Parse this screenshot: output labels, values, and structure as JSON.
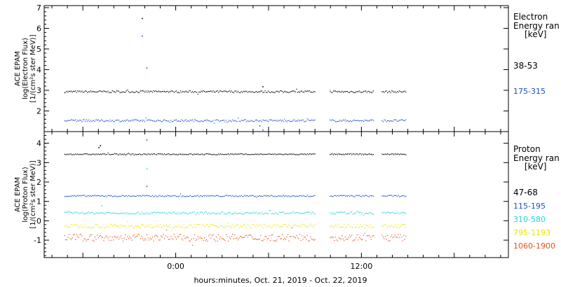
{
  "xaxis": {
    "label": "hours:minutes, Oct. 21, 2019 - Oct. 22, 2019",
    "range_hours": [
      -8.5,
      21.5
    ],
    "ticks": [
      {
        "value": 0,
        "label": "0:00"
      },
      {
        "value": 12,
        "label": "12:00"
      }
    ]
  },
  "chart_data": [
    {
      "type": "scatter",
      "ylabel": [
        "ACE EPAM",
        "log(Electron Flux)",
        "[1/(cm²s ster MeV)]"
      ],
      "legend_title": [
        "Electron",
        "Energy ran",
        "[keV]"
      ],
      "ylim": [
        1.0,
        7.1
      ],
      "yticks": [
        2,
        3,
        4,
        5,
        6,
        7
      ],
      "series": [
        {
          "name": "38-53",
          "color": "#000000",
          "level": 2.95,
          "noise": 0.05,
          "extra": [
            [
              -2.2,
              6.5
            ],
            [
              5.6,
              3.2
            ]
          ]
        },
        {
          "name": "175-315",
          "color": "#1a4fcf",
          "level": 1.55,
          "noise": 0.05,
          "extra": [
            [
              -2.2,
              5.65
            ],
            [
              -1.9,
              4.1
            ],
            [
              5.4,
              1.3
            ],
            [
              5.6,
              1.1
            ]
          ]
        }
      ],
      "data_gaps_hours": [
        [
          9.0,
          9.9
        ],
        [
          12.8,
          13.3
        ],
        [
          14.9,
          21.5
        ]
      ]
    },
    {
      "type": "scatter",
      "ylabel": [
        "ACE EPAM",
        "log(Proton Flux)",
        "[1/(cm²s ster MeV)]"
      ],
      "legend_title": [
        "Proton",
        "Energy ran",
        "[keV]"
      ],
      "ylim": [
        -1.9,
        4.6
      ],
      "yticks": [
        -1,
        0,
        1,
        2,
        3,
        4
      ],
      "series": [
        {
          "name": "47-68",
          "color": "#000000",
          "level": 3.45,
          "noise": 0.03,
          "extra": [
            [
              -5.0,
              3.8
            ],
            [
              -4.9,
              3.9
            ]
          ]
        },
        {
          "name": "115-195",
          "color": "#1a4fcf",
          "level": 1.3,
          "noise": 0.04,
          "extra": [
            [
              -1.9,
              4.2
            ],
            [
              -1.9,
              1.8
            ]
          ]
        },
        {
          "name": "310-580",
          "color": "#22d3d3",
          "level": 0.42,
          "noise": 0.06,
          "extra": [
            [
              -1.9,
              2.7
            ],
            [
              -4.8,
              0.8
            ]
          ]
        },
        {
          "name": "795-1193",
          "color": "#e6e600",
          "level": -0.25,
          "noise": 0.1,
          "extra": []
        },
        {
          "name": "1060-1900",
          "color": "#e8501a",
          "level": -0.85,
          "noise": 0.18,
          "extra": []
        }
      ],
      "data_gaps_hours": [
        [
          9.0,
          9.9
        ],
        [
          12.8,
          13.3
        ],
        [
          14.9,
          21.5
        ]
      ]
    }
  ]
}
